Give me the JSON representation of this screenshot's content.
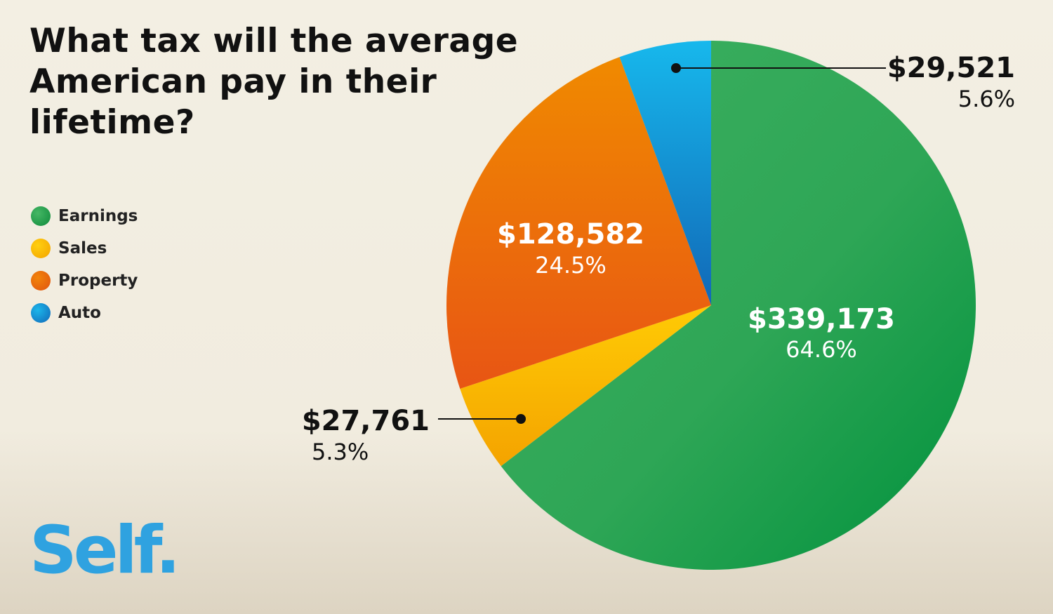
{
  "chart_data": {
    "type": "pie",
    "title": "What tax will the average American pay in their lifetime?",
    "slices": [
      {
        "name": "Earnings",
        "value": 339173,
        "value_label": "$339,173",
        "percent": 64.6,
        "percent_label": "64.6%",
        "color": "#2ca24f"
      },
      {
        "name": "Sales",
        "value": 27761,
        "value_label": "$27,761",
        "percent": 5.3,
        "percent_label": "5.3%",
        "color": "#f8b500"
      },
      {
        "name": "Property",
        "value": 128582,
        "value_label": "$128,582",
        "percent": 24.5,
        "percent_label": "24.5%",
        "color": "#ec6a0c"
      },
      {
        "name": "Auto",
        "value": 29521,
        "value_label": "$29,521",
        "percent": 5.6,
        "percent_label": "5.6%",
        "color": "#1890d8"
      }
    ],
    "legend": [
      "Earnings",
      "Sales",
      "Property",
      "Auto"
    ],
    "legend_position": "left"
  },
  "brand": {
    "logo_text": "Self",
    "logo_dot": "."
  }
}
